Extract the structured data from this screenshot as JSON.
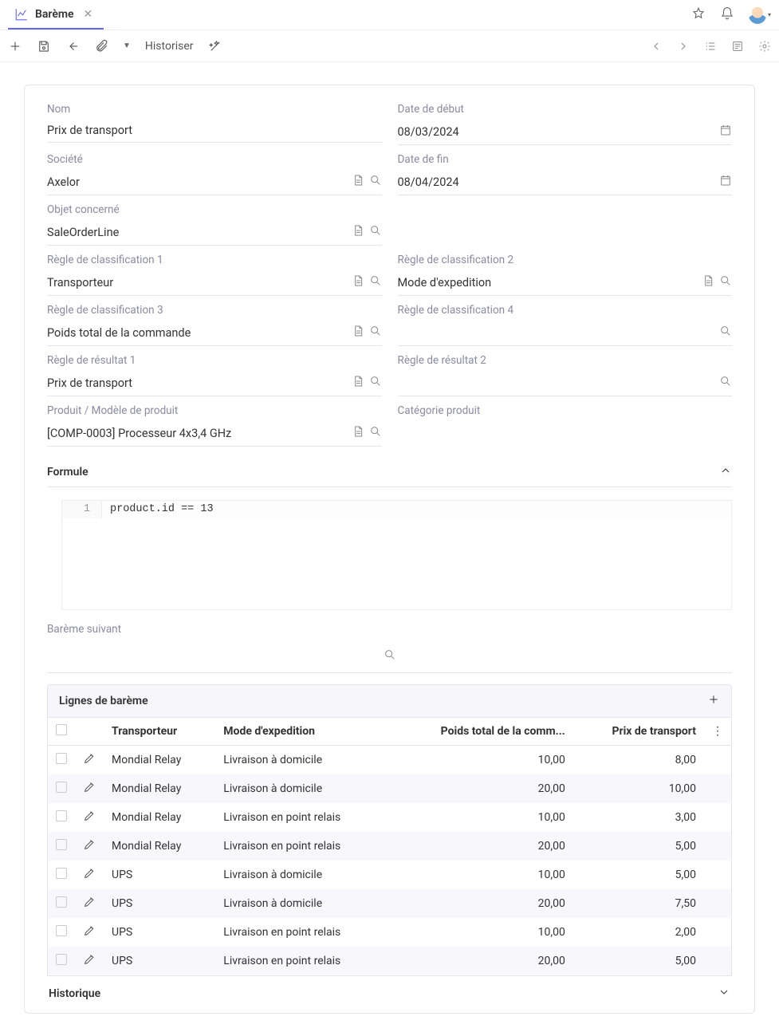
{
  "tab": {
    "title": "Barème"
  },
  "toolbar": {
    "historiser": "Historiser"
  },
  "form": {
    "labels": {
      "nom": "Nom",
      "societe": "Société",
      "objet": "Objet concerné",
      "regle1": "Règle de classification 1",
      "regle2": "Règle de classification 2",
      "regle3": "Règle de classification 3",
      "regle4": "Règle de classification 4",
      "resultat1": "Règle de résultat 1",
      "resultat2": "Règle de résultat 2",
      "produit": "Produit / Modèle de produit",
      "categorie": "Catégorie produit",
      "date_debut": "Date de début",
      "date_fin": "Date de fin"
    },
    "values": {
      "nom": "Prix de transport",
      "societe": "Axelor",
      "objet": "SaleOrderLine",
      "regle1": "Transporteur",
      "regle2": "Mode d'expedition",
      "regle3": "Poids total de la commande",
      "regle4": "",
      "resultat1": "Prix de transport",
      "resultat2": "",
      "produit": "[COMP-0003] Processeur 4x3,4 GHz",
      "categorie": "",
      "date_debut": "08/03/2024",
      "date_fin": "08/04/2024"
    }
  },
  "formule": {
    "title": "Formule",
    "line_no": "1",
    "code": "product.id == 13"
  },
  "bareme_suivant_label": "Barème suivant",
  "table": {
    "title": "Lignes de barème",
    "columns": {
      "transporteur": "Transporteur",
      "mode": "Mode d'expedition",
      "poids": "Poids total de la comm...",
      "prix": "Prix de transport"
    },
    "rows": [
      {
        "t": "Mondial Relay",
        "m": "Livraison à domicile",
        "p": "10,00",
        "x": "8,00"
      },
      {
        "t": "Mondial Relay",
        "m": "Livraison à domicile",
        "p": "20,00",
        "x": "10,00"
      },
      {
        "t": "Mondial Relay",
        "m": "Livraison en point relais",
        "p": "10,00",
        "x": "3,00"
      },
      {
        "t": "Mondial Relay",
        "m": "Livraison en point relais",
        "p": "20,00",
        "x": "5,00"
      },
      {
        "t": "UPS",
        "m": "Livraison à domicile",
        "p": "10,00",
        "x": "5,00"
      },
      {
        "t": "UPS",
        "m": "Livraison à domicile",
        "p": "20,00",
        "x": "7,50"
      },
      {
        "t": "UPS",
        "m": "Livraison en point relais",
        "p": "10,00",
        "x": "2,00"
      },
      {
        "t": "UPS",
        "m": "Livraison en point relais",
        "p": "20,00",
        "x": "5,00"
      }
    ]
  },
  "historique": "Historique"
}
